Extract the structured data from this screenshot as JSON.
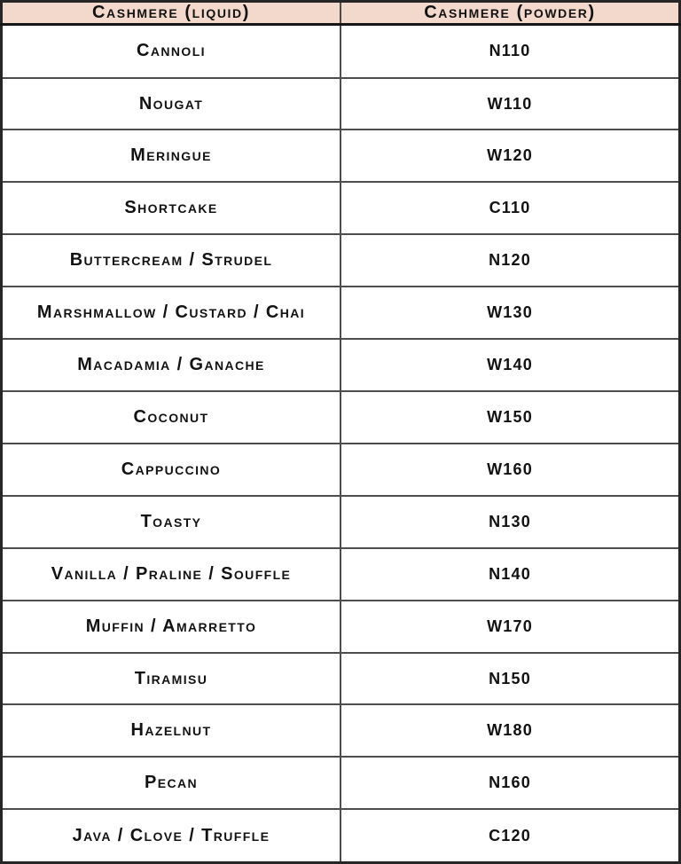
{
  "table": {
    "headers": [
      {
        "label": "Cashmere (liquid)"
      },
      {
        "label": "Cashmere (powder)"
      }
    ],
    "rows": [
      {
        "liquid": "Cannoli",
        "powder": "N110"
      },
      {
        "liquid": "Nougat",
        "powder": "W110"
      },
      {
        "liquid": "Meringue",
        "powder": "W120"
      },
      {
        "liquid": "Shortcake",
        "powder": "C110"
      },
      {
        "liquid": "Buttercream / Strudel",
        "powder": "N120"
      },
      {
        "liquid": "Marshmallow / Custard / Chai",
        "powder": "W130"
      },
      {
        "liquid": "Macadamia / Ganache",
        "powder": "W140"
      },
      {
        "liquid": "Coconut",
        "powder": "W150"
      },
      {
        "liquid": "Cappuccino",
        "powder": "W160"
      },
      {
        "liquid": "Toasty",
        "powder": "N130"
      },
      {
        "liquid": "Vanilla / Praline / Souffle",
        "powder": "N140"
      },
      {
        "liquid": "Muffin / Amarretto",
        "powder": "W170"
      },
      {
        "liquid": "Tiramisu",
        "powder": "N150"
      },
      {
        "liquid": "Hazelnut",
        "powder": "W180"
      },
      {
        "liquid": "Pecan",
        "powder": "N160"
      },
      {
        "liquid": "Java / Clove / Truffle",
        "powder": "C120"
      }
    ]
  },
  "colors": {
    "header_bg": "#f3d9cc",
    "border_outer": "#262626",
    "border_inner": "#4d4d4d",
    "header_rule": "#161616",
    "text": "#121212"
  }
}
